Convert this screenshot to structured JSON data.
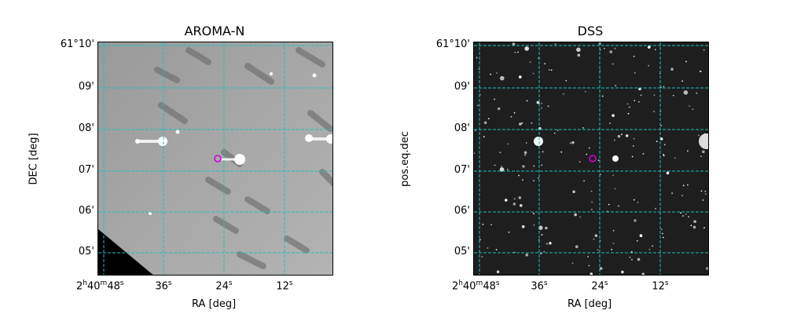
{
  "panels": [
    {
      "title": "AROMA-N",
      "xlabel": "RA [deg]",
      "ylabel": "DEC [deg]",
      "background": "#a9a9a9",
      "grid_color": "#1fbfbf",
      "marker_color": "#d400d4"
    },
    {
      "title": "DSS",
      "xlabel": "RA [deg]",
      "ylabel": "pos.eq.dec",
      "background": "#1e1e1e",
      "grid_color": "#1fbfbf",
      "marker_color": "#d400d4"
    }
  ],
  "ra_ticks": [
    {
      "h": "2",
      "m": "40",
      "s": "48"
    },
    {
      "s": "36"
    },
    {
      "s": "24"
    },
    {
      "s": "12"
    }
  ],
  "dec_ticks": [
    "61°10'",
    "09'",
    "08'",
    "07'",
    "06'",
    "05'"
  ]
}
